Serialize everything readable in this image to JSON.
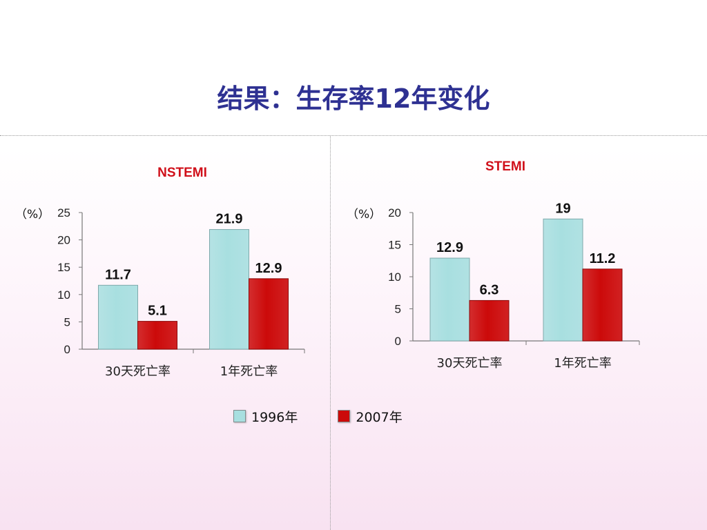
{
  "slide": {
    "title": "结果：生存率12年变化"
  },
  "colors": {
    "series_1996": "#a8dfe0",
    "series_2007": "#cc0a0a",
    "title": "#2e3192",
    "chart_title": "#d0101a"
  },
  "legend": {
    "items": [
      {
        "label": "1996年",
        "color": "#a8dfe0"
      },
      {
        "label": "2007年",
        "color": "#cc0a0a"
      }
    ]
  },
  "chart_data": [
    {
      "type": "bar",
      "title": "NSTEMI",
      "ylabel": "（%）",
      "categories": [
        "30天死亡率",
        "1年死亡率"
      ],
      "series": [
        {
          "name": "1996年",
          "values": [
            11.7,
            21.9
          ]
        },
        {
          "name": "2007年",
          "values": [
            5.1,
            12.9
          ]
        }
      ],
      "data_labels": [
        [
          "11.7",
          "21.9"
        ],
        [
          "5.1",
          "12.9"
        ]
      ],
      "ylim": [
        0,
        25
      ],
      "yticks": [
        0,
        5,
        10,
        15,
        20,
        25
      ],
      "grid": false
    },
    {
      "type": "bar",
      "title": "STEMI",
      "ylabel": "（%）",
      "categories": [
        "30天死亡率",
        "1年死亡率"
      ],
      "series": [
        {
          "name": "1996年",
          "values": [
            12.9,
            19
          ]
        },
        {
          "name": "2007年",
          "values": [
            6.3,
            11.2
          ]
        }
      ],
      "data_labels": [
        [
          "12.9",
          "19"
        ],
        [
          "6.3",
          "11.2"
        ]
      ],
      "ylim": [
        0,
        20
      ],
      "yticks": [
        0,
        5,
        10,
        15,
        20
      ],
      "grid": false
    }
  ]
}
